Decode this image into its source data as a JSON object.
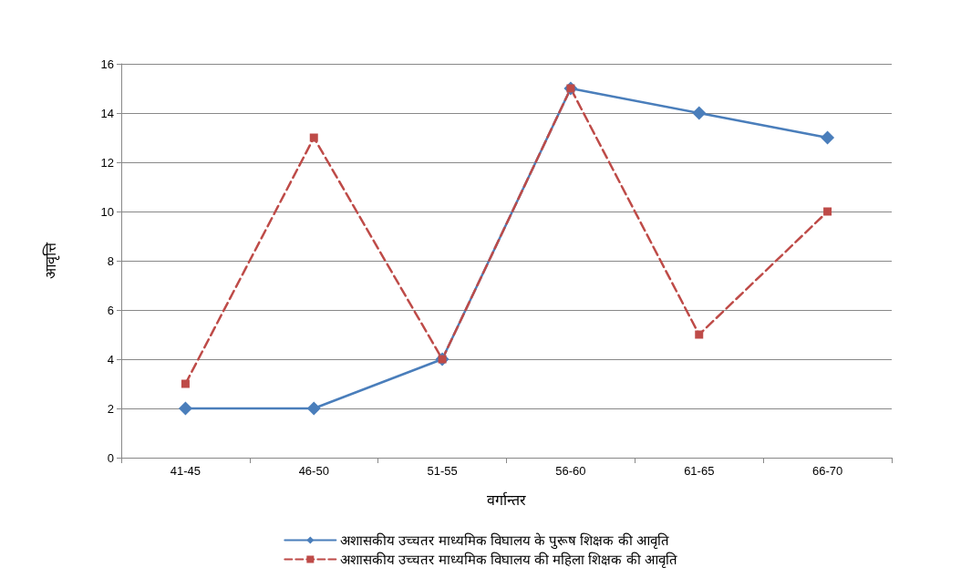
{
  "chart_data": {
    "type": "line",
    "xlabel": "वर्गान्तर",
    "ylabel": "आवृत्ति",
    "categories": [
      "41-45",
      "46-50",
      "51-55",
      "56-60",
      "61-65",
      "66-70"
    ],
    "series": [
      {
        "name": "अशासकीय उच्चतर माध्यमिक विघालय के पुरूष शिक्षक की आवृति",
        "color": "#4a7ebb",
        "values": [
          2,
          2,
          4,
          15,
          14,
          13
        ],
        "marker": "diamond",
        "line_style": "solid"
      },
      {
        "name": "अशासकीय उच्चतर माध्यमिक विघालय की महिला शिक्षक की आवृति",
        "color": "#be4b48",
        "values": [
          3,
          13,
          4,
          15,
          5,
          10
        ],
        "marker": "square",
        "line_style": "dashed"
      }
    ],
    "ylim": [
      0,
      16
    ],
    "yticks": [
      0,
      2,
      4,
      6,
      8,
      10,
      12,
      14,
      16
    ],
    "grid": "y",
    "legend": "bottom"
  }
}
